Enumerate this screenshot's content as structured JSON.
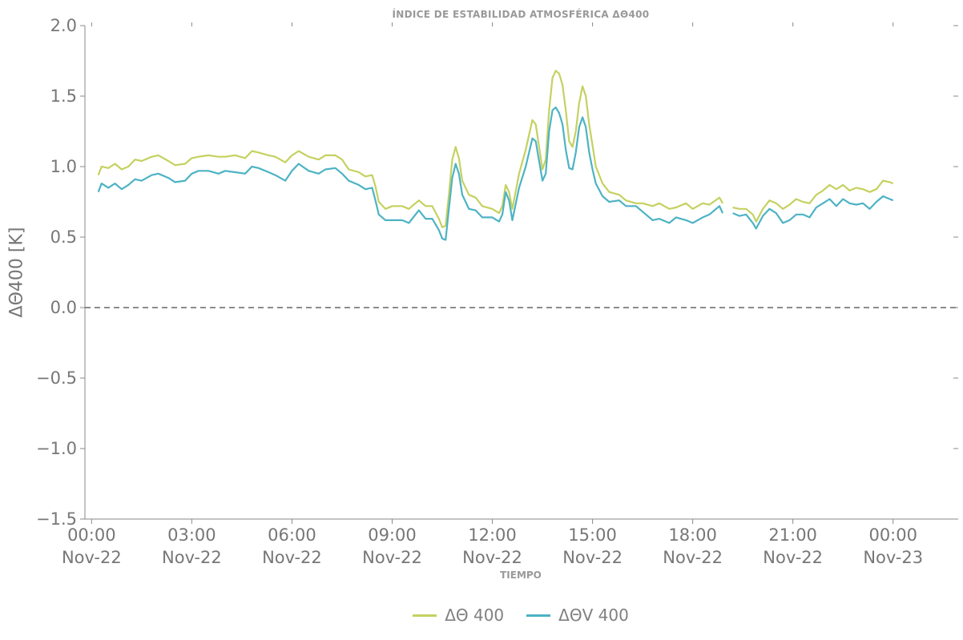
{
  "chart_data": {
    "type": "line",
    "title": "ÍNDICE DE ESTABILIDAD ATMOSFÉRICA ΔΘ400",
    "xlabel": "TIEMPO",
    "ylabel": "ΔΘ400 [K]",
    "ylim": [
      -1.5,
      2.0
    ],
    "xlim_hours": [
      -0.2,
      25.95
    ],
    "yticks": [
      -1.5,
      -1.0,
      -0.5,
      0.0,
      0.5,
      1.0,
      1.5,
      2.0
    ],
    "ytick_labels": [
      "−1.5",
      "−1.0",
      "−0.5",
      "0.0",
      "0.5",
      "1.0",
      "1.5",
      "2.0"
    ],
    "xtick_hours": [
      0,
      3,
      6,
      9,
      12,
      15,
      18,
      21,
      24
    ],
    "xtick_labels": [
      [
        "00:00",
        "Nov-22"
      ],
      [
        "03:00",
        "Nov-22"
      ],
      [
        "06:00",
        "Nov-22"
      ],
      [
        "09:00",
        "Nov-22"
      ],
      [
        "12:00",
        "Nov-22"
      ],
      [
        "15:00",
        "Nov-22"
      ],
      [
        "18:00",
        "Nov-22"
      ],
      [
        "21:00",
        "Nov-22"
      ],
      [
        "00:00",
        "Nov-23"
      ]
    ],
    "reference_line": {
      "y": 0.0,
      "style": "dashed",
      "color": "#666666"
    },
    "grid": false,
    "legend_position": "bottom-center",
    "series": [
      {
        "name": "ΔΘ 400",
        "color": "#c5d160",
        "points": [
          [
            0.2,
            0.94
          ],
          [
            0.3,
            1.0
          ],
          [
            0.5,
            0.99
          ],
          [
            0.7,
            1.02
          ],
          [
            0.9,
            0.98
          ],
          [
            1.1,
            1.0
          ],
          [
            1.3,
            1.05
          ],
          [
            1.5,
            1.04
          ],
          [
            1.8,
            1.07
          ],
          [
            2.0,
            1.08
          ],
          [
            2.3,
            1.04
          ],
          [
            2.5,
            1.01
          ],
          [
            2.8,
            1.02
          ],
          [
            3.0,
            1.06
          ],
          [
            3.2,
            1.07
          ],
          [
            3.5,
            1.08
          ],
          [
            3.8,
            1.07
          ],
          [
            4.0,
            1.07
          ],
          [
            4.3,
            1.08
          ],
          [
            4.6,
            1.06
          ],
          [
            4.8,
            1.11
          ],
          [
            5.0,
            1.1
          ],
          [
            5.3,
            1.08
          ],
          [
            5.5,
            1.07
          ],
          [
            5.8,
            1.03
          ],
          [
            6.0,
            1.08
          ],
          [
            6.2,
            1.11
          ],
          [
            6.5,
            1.07
          ],
          [
            6.8,
            1.05
          ],
          [
            7.0,
            1.08
          ],
          [
            7.3,
            1.08
          ],
          [
            7.5,
            1.05
          ],
          [
            7.7,
            0.98
          ],
          [
            8.0,
            0.96
          ],
          [
            8.2,
            0.93
          ],
          [
            8.4,
            0.94
          ],
          [
            8.5,
            0.86
          ],
          [
            8.6,
            0.75
          ],
          [
            8.8,
            0.7
          ],
          [
            9.0,
            0.72
          ],
          [
            9.3,
            0.72
          ],
          [
            9.5,
            0.7
          ],
          [
            9.8,
            0.76
          ],
          [
            10.0,
            0.72
          ],
          [
            10.2,
            0.72
          ],
          [
            10.4,
            0.63
          ],
          [
            10.5,
            0.57
          ],
          [
            10.6,
            0.58
          ],
          [
            10.7,
            0.8
          ],
          [
            10.8,
            1.05
          ],
          [
            10.9,
            1.14
          ],
          [
            11.0,
            1.06
          ],
          [
            11.1,
            0.9
          ],
          [
            11.3,
            0.8
          ],
          [
            11.5,
            0.78
          ],
          [
            11.7,
            0.72
          ],
          [
            12.0,
            0.7
          ],
          [
            12.2,
            0.67
          ],
          [
            12.3,
            0.72
          ],
          [
            12.4,
            0.87
          ],
          [
            12.5,
            0.82
          ],
          [
            12.6,
            0.7
          ],
          [
            12.8,
            0.95
          ],
          [
            13.0,
            1.12
          ],
          [
            13.2,
            1.33
          ],
          [
            13.3,
            1.3
          ],
          [
            13.5,
            0.98
          ],
          [
            13.6,
            1.05
          ],
          [
            13.7,
            1.4
          ],
          [
            13.8,
            1.63
          ],
          [
            13.9,
            1.68
          ],
          [
            14.0,
            1.66
          ],
          [
            14.1,
            1.58
          ],
          [
            14.2,
            1.4
          ],
          [
            14.3,
            1.18
          ],
          [
            14.4,
            1.14
          ],
          [
            14.5,
            1.25
          ],
          [
            14.6,
            1.45
          ],
          [
            14.7,
            1.57
          ],
          [
            14.8,
            1.5
          ],
          [
            14.9,
            1.3
          ],
          [
            15.0,
            1.15
          ],
          [
            15.1,
            1.0
          ],
          [
            15.3,
            0.88
          ],
          [
            15.5,
            0.82
          ],
          [
            15.8,
            0.8
          ],
          [
            16.0,
            0.76
          ],
          [
            16.3,
            0.74
          ],
          [
            16.5,
            0.74
          ],
          [
            16.8,
            0.72
          ],
          [
            17.0,
            0.74
          ],
          [
            17.3,
            0.7
          ],
          [
            17.5,
            0.71
          ],
          [
            17.8,
            0.74
          ],
          [
            18.0,
            0.7
          ],
          [
            18.3,
            0.74
          ],
          [
            18.5,
            0.73
          ],
          [
            18.8,
            0.78
          ],
          [
            18.9,
            0.74
          ]
        ]
      },
      {
        "name": "ΔΘV 400",
        "color": "#4db3c4",
        "points": [
          [
            0.2,
            0.82
          ],
          [
            0.3,
            0.88
          ],
          [
            0.5,
            0.85
          ],
          [
            0.7,
            0.88
          ],
          [
            0.9,
            0.84
          ],
          [
            1.1,
            0.87
          ],
          [
            1.3,
            0.91
          ],
          [
            1.5,
            0.9
          ],
          [
            1.8,
            0.94
          ],
          [
            2.0,
            0.95
          ],
          [
            2.3,
            0.92
          ],
          [
            2.5,
            0.89
          ],
          [
            2.8,
            0.9
          ],
          [
            3.0,
            0.95
          ],
          [
            3.2,
            0.97
          ],
          [
            3.5,
            0.97
          ],
          [
            3.8,
            0.95
          ],
          [
            4.0,
            0.97
          ],
          [
            4.3,
            0.96
          ],
          [
            4.6,
            0.95
          ],
          [
            4.8,
            1.0
          ],
          [
            5.0,
            0.99
          ],
          [
            5.3,
            0.96
          ],
          [
            5.5,
            0.94
          ],
          [
            5.8,
            0.9
          ],
          [
            6.0,
            0.97
          ],
          [
            6.2,
            1.02
          ],
          [
            6.5,
            0.97
          ],
          [
            6.8,
            0.95
          ],
          [
            7.0,
            0.98
          ],
          [
            7.3,
            0.99
          ],
          [
            7.5,
            0.95
          ],
          [
            7.7,
            0.9
          ],
          [
            8.0,
            0.87
          ],
          [
            8.2,
            0.84
          ],
          [
            8.4,
            0.85
          ],
          [
            8.5,
            0.76
          ],
          [
            8.6,
            0.66
          ],
          [
            8.8,
            0.62
          ],
          [
            9.0,
            0.62
          ],
          [
            9.3,
            0.62
          ],
          [
            9.5,
            0.6
          ],
          [
            9.8,
            0.69
          ],
          [
            10.0,
            0.63
          ],
          [
            10.2,
            0.63
          ],
          [
            10.4,
            0.55
          ],
          [
            10.5,
            0.49
          ],
          [
            10.6,
            0.48
          ],
          [
            10.7,
            0.7
          ],
          [
            10.8,
            0.92
          ],
          [
            10.9,
            1.02
          ],
          [
            11.0,
            0.95
          ],
          [
            11.1,
            0.8
          ],
          [
            11.3,
            0.7
          ],
          [
            11.5,
            0.69
          ],
          [
            11.7,
            0.64
          ],
          [
            12.0,
            0.64
          ],
          [
            12.2,
            0.61
          ],
          [
            12.3,
            0.66
          ],
          [
            12.4,
            0.82
          ],
          [
            12.5,
            0.76
          ],
          [
            12.6,
            0.62
          ],
          [
            12.8,
            0.85
          ],
          [
            13.0,
            1.0
          ],
          [
            13.2,
            1.2
          ],
          [
            13.3,
            1.18
          ],
          [
            13.5,
            0.9
          ],
          [
            13.6,
            0.95
          ],
          [
            13.7,
            1.25
          ],
          [
            13.8,
            1.4
          ],
          [
            13.9,
            1.42
          ],
          [
            14.0,
            1.38
          ],
          [
            14.1,
            1.3
          ],
          [
            14.2,
            1.12
          ],
          [
            14.3,
            0.99
          ],
          [
            14.4,
            0.98
          ],
          [
            14.5,
            1.1
          ],
          [
            14.6,
            1.28
          ],
          [
            14.7,
            1.35
          ],
          [
            14.8,
            1.28
          ],
          [
            14.9,
            1.1
          ],
          [
            15.0,
            0.98
          ],
          [
            15.1,
            0.88
          ],
          [
            15.3,
            0.79
          ],
          [
            15.5,
            0.75
          ],
          [
            15.8,
            0.76
          ],
          [
            16.0,
            0.72
          ],
          [
            16.3,
            0.72
          ],
          [
            16.5,
            0.68
          ],
          [
            16.8,
            0.62
          ],
          [
            17.0,
            0.63
          ],
          [
            17.3,
            0.6
          ],
          [
            17.5,
            0.64
          ],
          [
            17.8,
            0.62
          ],
          [
            18.0,
            0.6
          ],
          [
            18.3,
            0.64
          ],
          [
            18.5,
            0.66
          ],
          [
            18.8,
            0.72
          ],
          [
            18.9,
            0.67
          ]
        ]
      },
      {
        "name": "ΔΘ 400",
        "legend": false,
        "color": "#c5d160",
        "points": [
          [
            19.2,
            0.71
          ],
          [
            19.4,
            0.7
          ],
          [
            19.6,
            0.7
          ],
          [
            19.8,
            0.66
          ],
          [
            19.9,
            0.61
          ],
          [
            20.1,
            0.7
          ],
          [
            20.3,
            0.76
          ],
          [
            20.5,
            0.74
          ],
          [
            20.7,
            0.7
          ],
          [
            20.9,
            0.73
          ],
          [
            21.1,
            0.77
          ],
          [
            21.3,
            0.75
          ],
          [
            21.5,
            0.74
          ],
          [
            21.7,
            0.8
          ],
          [
            21.9,
            0.83
          ],
          [
            22.1,
            0.87
          ],
          [
            22.3,
            0.84
          ],
          [
            22.5,
            0.87
          ],
          [
            22.7,
            0.83
          ],
          [
            22.9,
            0.85
          ],
          [
            23.1,
            0.84
          ],
          [
            23.3,
            0.82
          ],
          [
            23.5,
            0.84
          ],
          [
            23.7,
            0.9
          ],
          [
            23.9,
            0.89
          ],
          [
            24.0,
            0.88
          ]
        ]
      },
      {
        "name": "ΔΘV 400",
        "legend": false,
        "color": "#4db3c4",
        "points": [
          [
            19.2,
            0.67
          ],
          [
            19.4,
            0.65
          ],
          [
            19.6,
            0.66
          ],
          [
            19.8,
            0.6
          ],
          [
            19.9,
            0.56
          ],
          [
            20.1,
            0.65
          ],
          [
            20.3,
            0.7
          ],
          [
            20.5,
            0.67
          ],
          [
            20.7,
            0.6
          ],
          [
            20.9,
            0.62
          ],
          [
            21.1,
            0.66
          ],
          [
            21.3,
            0.66
          ],
          [
            21.5,
            0.64
          ],
          [
            21.7,
            0.71
          ],
          [
            21.9,
            0.74
          ],
          [
            22.1,
            0.77
          ],
          [
            22.3,
            0.72
          ],
          [
            22.5,
            0.77
          ],
          [
            22.7,
            0.74
          ],
          [
            22.9,
            0.73
          ],
          [
            23.1,
            0.74
          ],
          [
            23.3,
            0.7
          ],
          [
            23.5,
            0.75
          ],
          [
            23.7,
            0.79
          ],
          [
            23.9,
            0.77
          ],
          [
            24.0,
            0.76
          ]
        ]
      }
    ]
  }
}
